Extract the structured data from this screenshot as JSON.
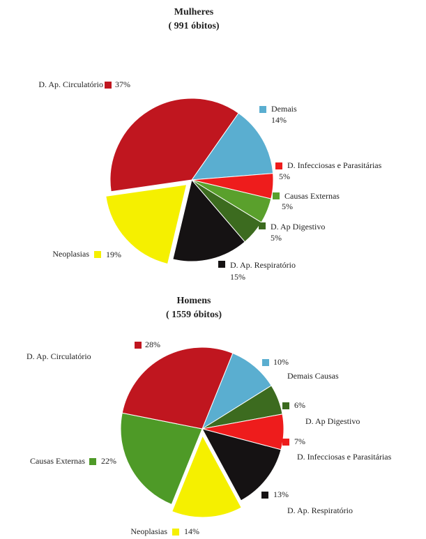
{
  "chart_data": [
    {
      "type": "pie",
      "title": "Mulheres",
      "subtitle": "( 991 óbitos)",
      "categories": [
        "D. Ap. Circulatório",
        "Demais",
        "D. Infecciosas e Parasitárias",
        "Causas Externas",
        "D. Ap Digestivo",
        "D. Ap. Respiratório",
        "Neoplasias"
      ],
      "values": [
        37,
        14,
        5,
        5,
        5,
        15,
        19
      ],
      "value_labels": [
        "37%",
        "14%",
        "5%",
        "5%",
        "5%",
        "15%",
        "19%"
      ],
      "colors": [
        "#c0161f",
        "#5aaed0",
        "#ee1c1c",
        "#5aa02c",
        "#3c6b1f",
        "#151213",
        "#f5f000"
      ]
    },
    {
      "type": "pie",
      "title": "Homens",
      "subtitle": "( 1559 óbitos)",
      "categories": [
        "D. Ap. Circulatório",
        "Demais Causas",
        "D. Ap Digestivo",
        "D. Infecciosas e Parasitárias",
        "D. Ap. Respiratório",
        "Neoplasias",
        "Causas Externas"
      ],
      "values": [
        28,
        10,
        6,
        7,
        13,
        14,
        22
      ],
      "value_labels": [
        "28%",
        "10%",
        "6%",
        "7%",
        "13%",
        "14%",
        "22%"
      ],
      "colors": [
        "#c0161f",
        "#5aaed0",
        "#3c6b1f",
        "#ee1c1c",
        "#151213",
        "#f5f000",
        "#4e9a27"
      ]
    }
  ]
}
